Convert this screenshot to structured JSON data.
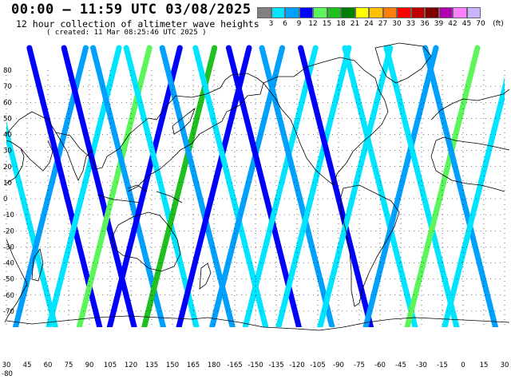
{
  "header": {
    "title": "00:00 – 11:59 UTC 03/08/2025",
    "subtitle": "12 hour collection of altimeter wave heights",
    "created": "( created: 11 Mar 08:25:46 UTC 2025 )"
  },
  "legend": {
    "unit": "(ft)",
    "labels": [
      "3",
      "6",
      "9",
      "12",
      "15",
      "18",
      "21",
      "24",
      "27",
      "30",
      "33",
      "36",
      "39",
      "42",
      "45",
      "70"
    ],
    "colors": [
      "#808080",
      "#00e5ff",
      "#00a0ff",
      "#0000ff",
      "#5cf55c",
      "#1fc01f",
      "#008000",
      "#ffff00",
      "#ffc000",
      "#ff8000",
      "#ff0000",
      "#c00000",
      "#800000",
      "#b000b0",
      "#ff80ff",
      "#c8b4ff"
    ]
  },
  "axes": {
    "lon_labels": [
      "30",
      "45",
      "60",
      "75",
      "90",
      "105",
      "120",
      "135",
      "150",
      "165",
      "180",
      "-165",
      "-150",
      "-135",
      "-120",
      "-105",
      "-90",
      "-75",
      "-60",
      "-45",
      "-30",
      "-15",
      "0",
      "15",
      "30"
    ],
    "lat_labels": [
      "80",
      "70",
      "60",
      "50",
      "40",
      "30",
      "20",
      "10",
      "0",
      "-10",
      "-20",
      "-30",
      "-40",
      "-50",
      "-60",
      "-70"
    ],
    "corner_label": "-80"
  },
  "colors": {
    "land_outline": "#000000",
    "grid": "#000000",
    "background": "#ffffff"
  },
  "tracks": [
    {
      "lon0": 40,
      "slope": 1,
      "color": "#00e5ff"
    },
    {
      "lon0": 62,
      "slope": -1,
      "color": "#00a0ff"
    },
    {
      "lon0": 72,
      "slope": 1,
      "color": "#0000ff"
    },
    {
      "lon0": 86,
      "slope": -1,
      "color": "#00e5ff"
    },
    {
      "lon0": 97,
      "slope": 1,
      "color": "#0000ff"
    },
    {
      "lon0": 108,
      "slope": -1,
      "color": "#5cf55c"
    },
    {
      "lon0": 118,
      "slope": 1,
      "color": "#00a0ff"
    },
    {
      "lon0": 130,
      "slope": -1,
      "color": "#0000ff"
    },
    {
      "lon0": 142,
      "slope": 1,
      "color": "#00e5ff"
    },
    {
      "lon0": 155,
      "slope": -1,
      "color": "#1fc01f"
    },
    {
      "lon0": 168,
      "slope": 1,
      "color": "#00a0ff"
    },
    {
      "lon0": 180,
      "slope": -1,
      "color": "#0000ff"
    },
    {
      "lon0": 192,
      "slope": 1,
      "color": "#00e5ff"
    },
    {
      "lon0": 204,
      "slope": -1,
      "color": "#00a0ff"
    },
    {
      "lon0": 216,
      "slope": 1,
      "color": "#0000ff"
    },
    {
      "lon0": 228,
      "slope": -1,
      "color": "#00e5ff"
    },
    {
      "lon0": 240,
      "slope": 1,
      "color": "#00a0ff"
    },
    {
      "lon0": 252,
      "slope": -1,
      "color": "#00e5ff"
    },
    {
      "lon0": 268,
      "slope": 1,
      "color": "#0000ff"
    },
    {
      "lon0": 282,
      "slope": -1,
      "color": "#00e5ff"
    },
    {
      "lon0": 300,
      "slope": 1,
      "color": "#00e5ff"
    },
    {
      "lon0": 315,
      "slope": -1,
      "color": "#00a0ff"
    },
    {
      "lon0": 330,
      "slope": 1,
      "color": "#00e5ff"
    },
    {
      "lon0": 345,
      "slope": -1,
      "color": "#5cf55c"
    },
    {
      "lon0": 358,
      "slope": 1,
      "color": "#00a0ff"
    },
    {
      "lon0": 372,
      "slope": -1,
      "color": "#00e5ff"
    }
  ]
}
